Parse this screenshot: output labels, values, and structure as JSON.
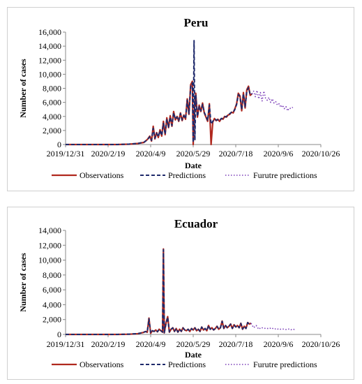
{
  "chart_data": [
    {
      "type": "line",
      "title": "Peru",
      "xlabel": "Date",
      "ylabel": "Number of cases",
      "ylim": [
        0,
        16000
      ],
      "yticks": [
        0,
        2000,
        4000,
        6000,
        8000,
        10000,
        12000,
        14000,
        16000
      ],
      "ytick_labels": [
        "0",
        "2,000",
        "4,000",
        "6,000",
        "8,000",
        "10,000",
        "12,000",
        "14,000",
        "16,000"
      ],
      "xlim": [
        "2019-12-31",
        "2020-10-26"
      ],
      "xticks": [
        "2019-12-31",
        "2020-02-19",
        "2020-04-09",
        "2020-05-29",
        "2020-07-18",
        "2020-09-06",
        "2020-10-26"
      ],
      "xtick_labels": [
        "2019/12/31",
        "2020/2/19",
        "2020/4/9",
        "2020/5/29",
        "2020/7/18",
        "2020/9/6",
        "2020/10/26"
      ],
      "grid": false,
      "legend_position": "bottom",
      "series": [
        {
          "name": "Observations",
          "style": "solid",
          "color": "#b0281e",
          "x": [
            "2019-12-31",
            "2020-03-01",
            "2020-03-15",
            "2020-03-25",
            "2020-04-01",
            "2020-04-05",
            "2020-04-08",
            "2020-04-10",
            "2020-04-12",
            "2020-04-14",
            "2020-04-16",
            "2020-04-18",
            "2020-04-20",
            "2020-04-22",
            "2020-04-24",
            "2020-04-26",
            "2020-04-28",
            "2020-04-30",
            "2020-05-02",
            "2020-05-04",
            "2020-05-06",
            "2020-05-08",
            "2020-05-10",
            "2020-05-12",
            "2020-05-14",
            "2020-05-16",
            "2020-05-18",
            "2020-05-20",
            "2020-05-22",
            "2020-05-24",
            "2020-05-26",
            "2020-05-28",
            "2020-05-29",
            "2020-05-30",
            "2020-06-01",
            "2020-06-03",
            "2020-06-05",
            "2020-06-07",
            "2020-06-09",
            "2020-06-11",
            "2020-06-13",
            "2020-06-15",
            "2020-06-17",
            "2020-06-19",
            "2020-06-21",
            "2020-06-23",
            "2020-06-25",
            "2020-06-27",
            "2020-06-29",
            "2020-07-01",
            "2020-07-03",
            "2020-07-05",
            "2020-07-07",
            "2020-07-09",
            "2020-07-11",
            "2020-07-13",
            "2020-07-15",
            "2020-07-17",
            "2020-07-19",
            "2020-07-21",
            "2020-07-23",
            "2020-07-25",
            "2020-07-27",
            "2020-07-29",
            "2020-07-31",
            "2020-08-02",
            "2020-08-04",
            "2020-08-06"
          ],
          "values": [
            0,
            0,
            50,
            150,
            300,
            700,
            1200,
            500,
            2600,
            800,
            1700,
            1000,
            2100,
            1200,
            3300,
            1400,
            3800,
            2400,
            4100,
            2600,
            4700,
            3500,
            4000,
            3300,
            4500,
            3400,
            4200,
            3600,
            6500,
            4300,
            8500,
            9000,
            0,
            4000,
            7300,
            3900,
            5600,
            4700,
            5900,
            4500,
            3900,
            3300,
            5800,
            0,
            3200,
            3700,
            3400,
            3600,
            3300,
            3700,
            3600,
            4000,
            3900,
            4200,
            4300,
            4600,
            4500,
            5100,
            5800,
            7300,
            6900,
            4800,
            7400,
            5200,
            7800,
            8300,
            7000,
            7200
          ]
        },
        {
          "name": "Predictions",
          "style": "dashed",
          "color": "#1f2a6b",
          "x": [
            "2019-12-31",
            "2020-03-01",
            "2020-03-15",
            "2020-03-25",
            "2020-04-01",
            "2020-04-05",
            "2020-04-08",
            "2020-04-10",
            "2020-04-12",
            "2020-04-14",
            "2020-04-16",
            "2020-04-18",
            "2020-04-20",
            "2020-04-22",
            "2020-04-24",
            "2020-04-26",
            "2020-04-28",
            "2020-04-30",
            "2020-05-02",
            "2020-05-04",
            "2020-05-06",
            "2020-05-08",
            "2020-05-10",
            "2020-05-12",
            "2020-05-14",
            "2020-05-16",
            "2020-05-18",
            "2020-05-20",
            "2020-05-22",
            "2020-05-24",
            "2020-05-26",
            "2020-05-28",
            "2020-05-29",
            "2020-05-30",
            "2020-05-31",
            "2020-06-01",
            "2020-06-03",
            "2020-06-05",
            "2020-06-07",
            "2020-06-09",
            "2020-06-11",
            "2020-06-13",
            "2020-06-15",
            "2020-06-17",
            "2020-06-19",
            "2020-06-21",
            "2020-06-23",
            "2020-06-25",
            "2020-06-27",
            "2020-06-29",
            "2020-07-01",
            "2020-07-03",
            "2020-07-05",
            "2020-07-07",
            "2020-07-09",
            "2020-07-11",
            "2020-07-13",
            "2020-07-15",
            "2020-07-17",
            "2020-07-19",
            "2020-07-21",
            "2020-07-23",
            "2020-07-25",
            "2020-07-27",
            "2020-07-29",
            "2020-07-31",
            "2020-08-02",
            "2020-08-04",
            "2020-08-06"
          ],
          "values": [
            0,
            0,
            60,
            160,
            320,
            650,
            1100,
            600,
            2300,
            900,
            1600,
            1100,
            2000,
            1300,
            3000,
            1500,
            3600,
            2500,
            3900,
            2700,
            4500,
            3600,
            3900,
            3400,
            4400,
            3500,
            4100,
            3700,
            6300,
            4400,
            8200,
            8800,
            300,
            14800,
            600,
            7000,
            4000,
            5400,
            4800,
            5700,
            4600,
            4000,
            3400,
            5600,
            2900,
            3300,
            3600,
            3500,
            3500,
            3400,
            3700,
            3700,
            3900,
            4000,
            4200,
            4400,
            4600,
            4600,
            5000,
            5700,
            7100,
            6800,
            5000,
            7200,
            5400,
            7600,
            8100,
            7100,
            7200
          ]
        },
        {
          "name": "Furutre predictions",
          "style": "dotted",
          "color": "#7a3db8",
          "x": [
            "2020-08-06",
            "2020-08-08",
            "2020-08-10",
            "2020-08-12",
            "2020-08-14",
            "2020-08-16",
            "2020-08-18",
            "2020-08-20",
            "2020-08-22",
            "2020-08-24",
            "2020-08-26",
            "2020-08-28",
            "2020-08-30",
            "2020-09-01",
            "2020-09-03",
            "2020-09-05",
            "2020-09-07",
            "2020-09-09",
            "2020-09-11",
            "2020-09-13",
            "2020-09-15",
            "2020-09-17",
            "2020-09-19",
            "2020-09-21",
            "2020-09-23"
          ],
          "values": [
            7200,
            7600,
            6800,
            7700,
            6500,
            7400,
            6200,
            7600,
            6600,
            6300,
            6700,
            6000,
            6500,
            5900,
            6100,
            5600,
            5800,
            5300,
            5600,
            5100,
            5400,
            4800,
            5200,
            5100,
            5300
          ]
        }
      ]
    },
    {
      "type": "line",
      "title": "Ecuador",
      "xlabel": "Date",
      "ylabel": "Number of cases",
      "ylim": [
        0,
        14000
      ],
      "yticks": [
        0,
        2000,
        4000,
        6000,
        8000,
        10000,
        12000,
        14000
      ],
      "ytick_labels": [
        "0",
        "2,000",
        "4,000",
        "6,000",
        "8,000",
        "10,000",
        "12,000",
        "14,000"
      ],
      "xlim": [
        "2019-12-31",
        "2020-10-26"
      ],
      "xticks": [
        "2019-12-31",
        "2020-02-19",
        "2020-04-09",
        "2020-05-29",
        "2020-07-18",
        "2020-09-06",
        "2020-10-26"
      ],
      "xtick_labels": [
        "2019/12/31",
        "2020/2/19",
        "2020/4/9",
        "2020/5/29",
        "2020/7/18",
        "2020/9/6",
        "2020/10/26"
      ],
      "grid": false,
      "legend_position": "bottom",
      "series": [
        {
          "name": "Observations",
          "style": "solid",
          "color": "#b0281e",
          "x": [
            "2019-12-31",
            "2020-03-01",
            "2020-03-15",
            "2020-03-25",
            "2020-03-31",
            "2020-04-03",
            "2020-04-05",
            "2020-04-07",
            "2020-04-09",
            "2020-04-11",
            "2020-04-13",
            "2020-04-15",
            "2020-04-17",
            "2020-04-19",
            "2020-04-21",
            "2020-04-23",
            "2020-04-24",
            "2020-04-25",
            "2020-04-27",
            "2020-04-29",
            "2020-05-01",
            "2020-05-03",
            "2020-05-05",
            "2020-05-07",
            "2020-05-09",
            "2020-05-11",
            "2020-05-13",
            "2020-05-15",
            "2020-05-17",
            "2020-05-19",
            "2020-05-21",
            "2020-05-23",
            "2020-05-25",
            "2020-05-27",
            "2020-05-29",
            "2020-05-31",
            "2020-06-02",
            "2020-06-04",
            "2020-06-06",
            "2020-06-08",
            "2020-06-10",
            "2020-06-12",
            "2020-06-14",
            "2020-06-16",
            "2020-06-18",
            "2020-06-20",
            "2020-06-22",
            "2020-06-24",
            "2020-06-26",
            "2020-06-28",
            "2020-06-30",
            "2020-07-02",
            "2020-07-04",
            "2020-07-06",
            "2020-07-08",
            "2020-07-10",
            "2020-07-12",
            "2020-07-14",
            "2020-07-16",
            "2020-07-18",
            "2020-07-20",
            "2020-07-22",
            "2020-07-24",
            "2020-07-26",
            "2020-07-28",
            "2020-07-30",
            "2020-08-01",
            "2020-08-03",
            "2020-08-05"
          ],
          "values": [
            0,
            0,
            30,
            100,
            250,
            400,
            300,
            2200,
            150,
            500,
            400,
            600,
            350,
            700,
            500,
            300,
            11500,
            200,
            1500,
            2400,
            300,
            700,
            900,
            400,
            800,
            300,
            700,
            400,
            900,
            600,
            500,
            700,
            400,
            800,
            600,
            900,
            500,
            700,
            400,
            1000,
            600,
            800,
            500,
            1200,
            700,
            900,
            600,
            800,
            1100,
            700,
            900,
            1800,
            800,
            1200,
            900,
            1100,
            1400,
            800,
            1300,
            1000,
            1200,
            900,
            1500,
            700,
            1100,
            800,
            1600,
            1400,
            1500
          ]
        },
        {
          "name": "Predictions",
          "style": "dashed",
          "color": "#1f2a6b",
          "x": [
            "2019-12-31",
            "2020-03-01",
            "2020-03-15",
            "2020-03-25",
            "2020-03-31",
            "2020-04-03",
            "2020-04-05",
            "2020-04-07",
            "2020-04-09",
            "2020-04-11",
            "2020-04-13",
            "2020-04-15",
            "2020-04-17",
            "2020-04-19",
            "2020-04-21",
            "2020-04-23",
            "2020-04-24",
            "2020-04-25",
            "2020-04-27",
            "2020-04-29",
            "2020-05-01",
            "2020-05-03",
            "2020-05-05",
            "2020-05-07",
            "2020-05-09",
            "2020-05-11",
            "2020-05-13",
            "2020-05-15",
            "2020-05-17",
            "2020-05-19",
            "2020-05-21",
            "2020-05-23",
            "2020-05-25",
            "2020-05-27",
            "2020-05-29",
            "2020-05-31",
            "2020-06-02",
            "2020-06-04",
            "2020-06-06",
            "2020-06-08",
            "2020-06-10",
            "2020-06-12",
            "2020-06-14",
            "2020-06-16",
            "2020-06-18",
            "2020-06-20",
            "2020-06-22",
            "2020-06-24",
            "2020-06-26",
            "2020-06-28",
            "2020-06-30",
            "2020-07-02",
            "2020-07-04",
            "2020-07-06",
            "2020-07-08",
            "2020-07-10",
            "2020-07-12",
            "2020-07-14",
            "2020-07-16",
            "2020-07-18",
            "2020-07-20",
            "2020-07-22",
            "2020-07-24",
            "2020-07-26",
            "2020-07-28",
            "2020-07-30",
            "2020-08-01",
            "2020-08-03",
            "2020-08-05"
          ],
          "values": [
            0,
            0,
            40,
            110,
            260,
            380,
            320,
            2100,
            200,
            480,
            420,
            580,
            370,
            680,
            520,
            330,
            11400,
            250,
            1450,
            2300,
            350,
            680,
            880,
            420,
            780,
            330,
            690,
            420,
            880,
            610,
            520,
            690,
            420,
            780,
            610,
            880,
            520,
            690,
            430,
            980,
            610,
            790,
            520,
            1180,
            700,
            880,
            610,
            790,
            1080,
            710,
            890,
            1750,
            820,
            1180,
            910,
            1090,
            1380,
            810,
            1280,
            1010,
            1190,
            910,
            1480,
            720,
            1090,
            810,
            1580,
            1390,
            1500
          ]
        },
        {
          "name": "Furutre predictions",
          "style": "dotted",
          "color": "#7a3db8",
          "x": [
            "2020-08-05",
            "2020-08-08",
            "2020-08-11",
            "2020-08-14",
            "2020-08-17",
            "2020-08-20",
            "2020-08-23",
            "2020-08-26",
            "2020-08-29",
            "2020-09-01",
            "2020-09-04",
            "2020-09-07",
            "2020-09-10",
            "2020-09-13",
            "2020-09-16",
            "2020-09-19",
            "2020-09-22",
            "2020-09-25"
          ],
          "values": [
            1500,
            900,
            1200,
            700,
            950,
            800,
            850,
            750,
            900,
            700,
            800,
            650,
            750,
            700,
            650,
            750,
            600,
            700
          ]
        }
      ]
    }
  ]
}
